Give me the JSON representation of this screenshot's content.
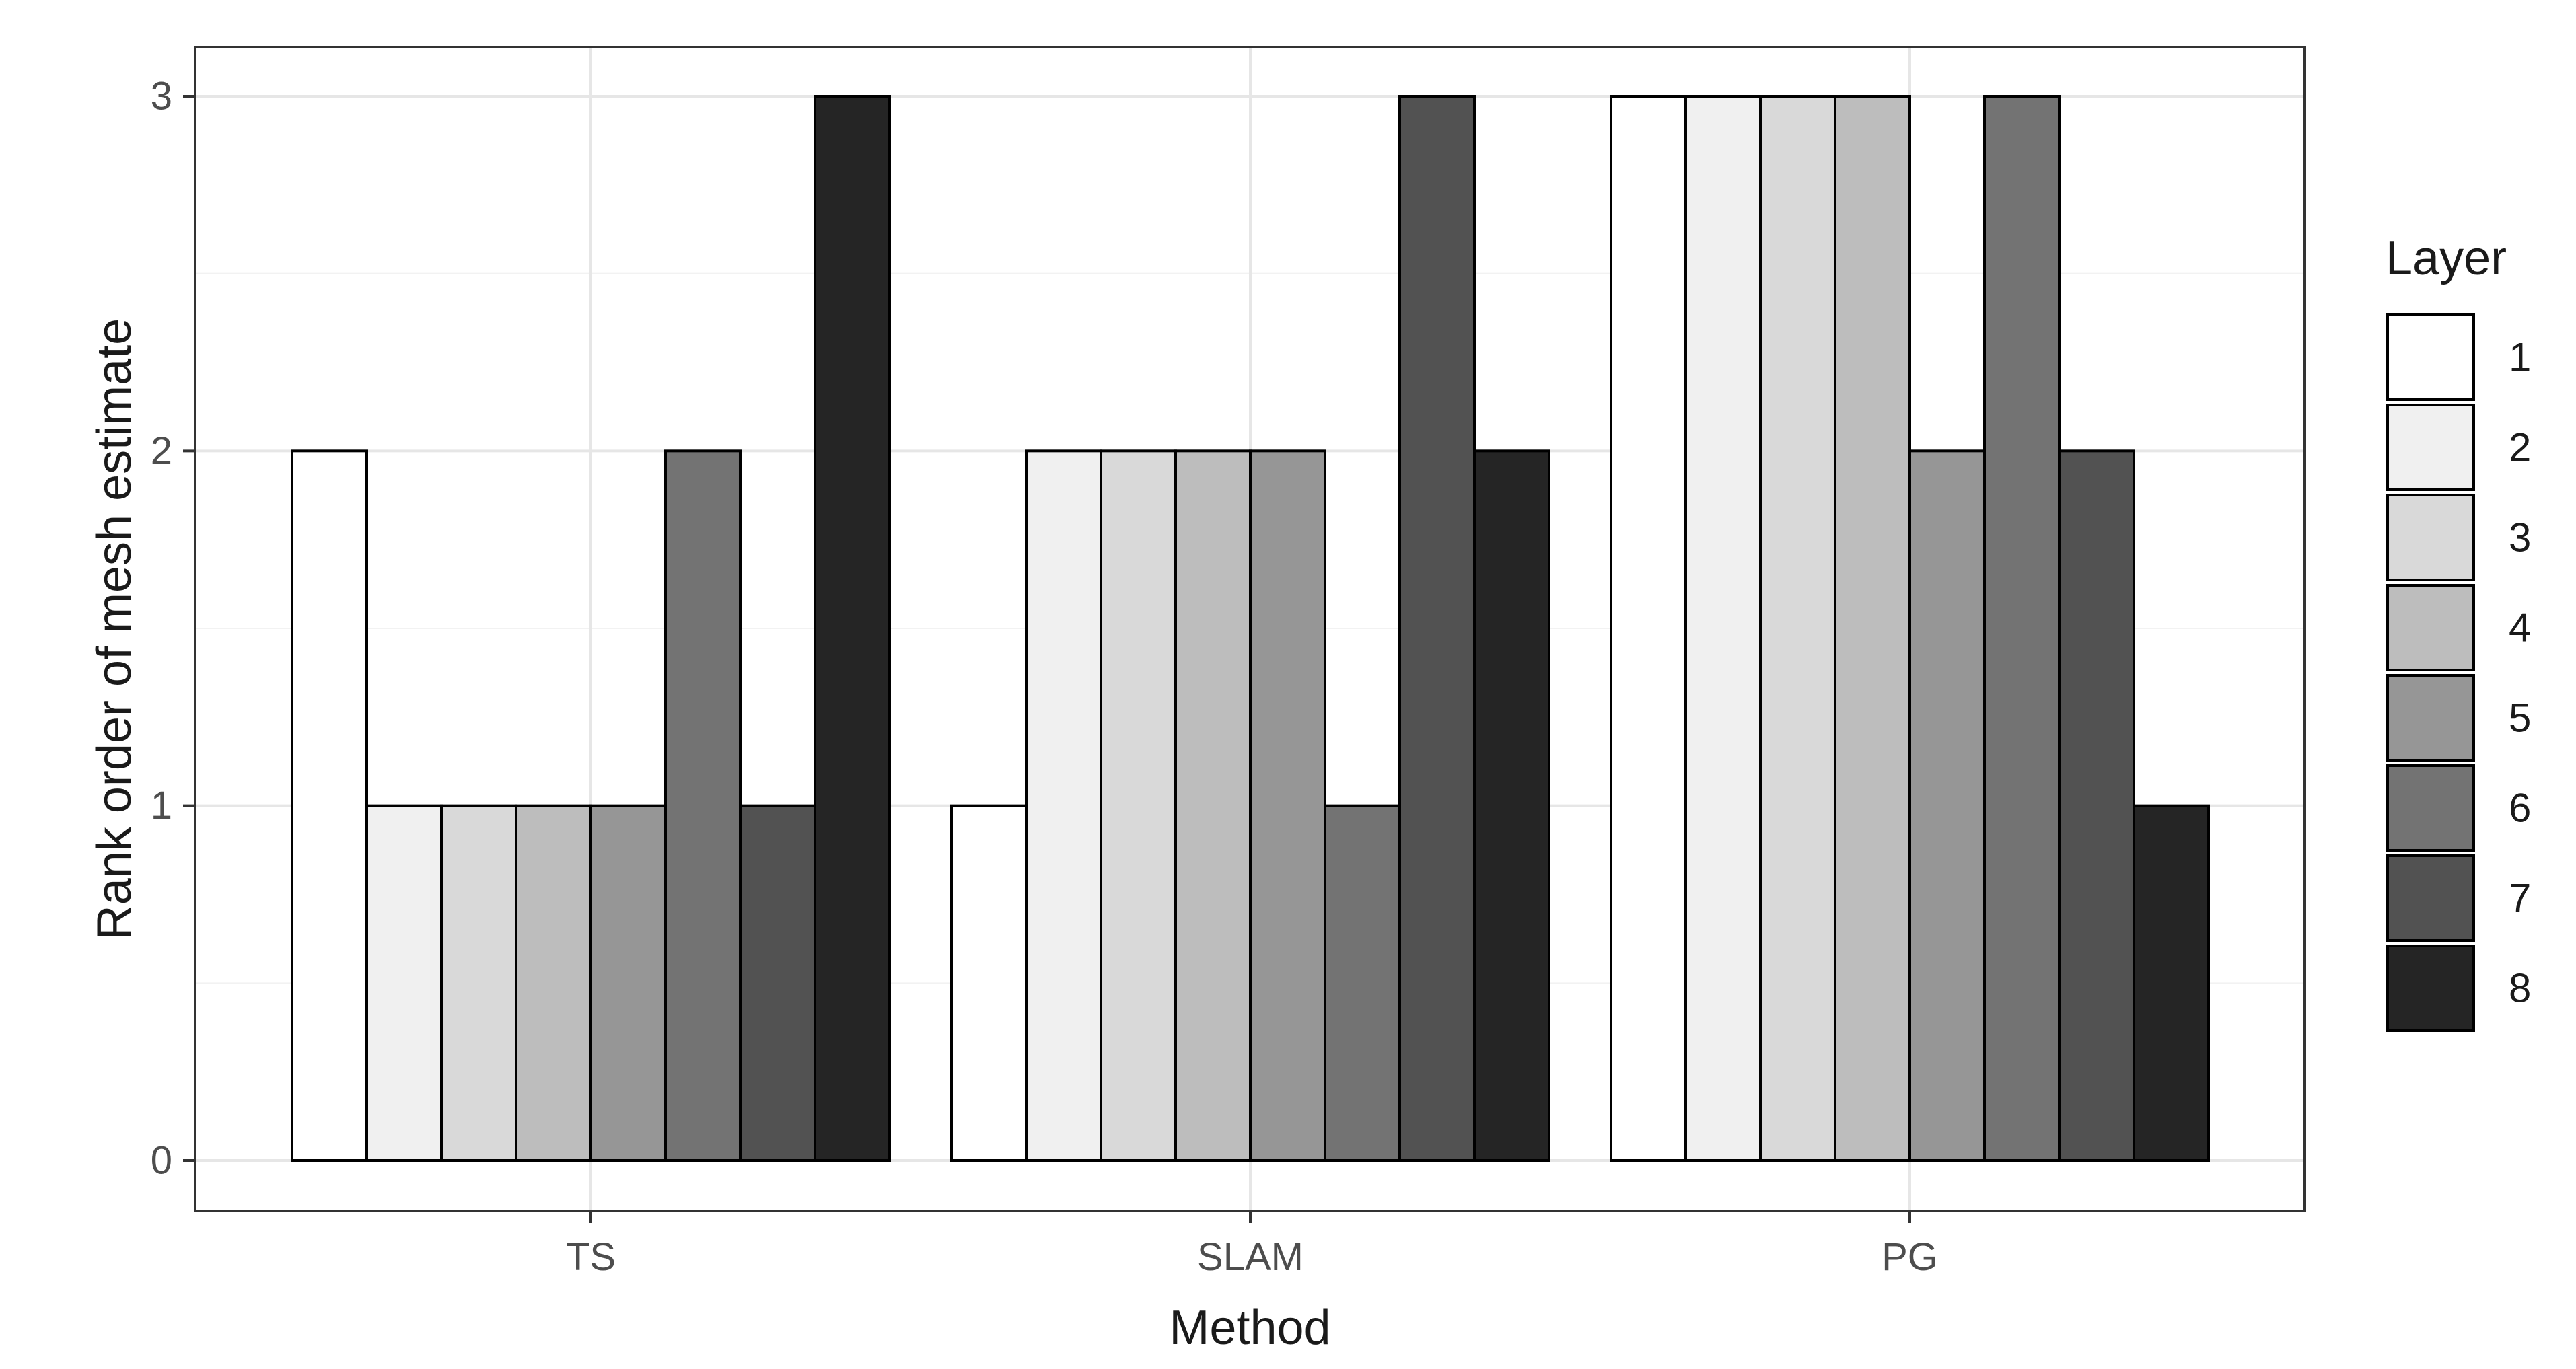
{
  "chart_data": {
    "type": "bar",
    "xlabel": "Method",
    "ylabel": "Rank order of mesh estimate",
    "categories": [
      "TS",
      "SLAM",
      "PG"
    ],
    "yticks": [
      "0",
      "1",
      "2",
      "3"
    ],
    "ylim": [
      0,
      3
    ],
    "grid": true,
    "legend": {
      "title": "Layer",
      "placement": "right"
    },
    "series": [
      {
        "name": "1",
        "color": "#ffffff",
        "values": [
          2,
          1,
          3
        ]
      },
      {
        "name": "2",
        "color": "#f0f0f0",
        "values": [
          1,
          2,
          3
        ]
      },
      {
        "name": "3",
        "color": "#d9d9d9",
        "values": [
          1,
          2,
          3
        ]
      },
      {
        "name": "4",
        "color": "#bdbdbd",
        "values": [
          1,
          2,
          3
        ]
      },
      {
        "name": "5",
        "color": "#969696",
        "values": [
          1,
          2,
          2
        ]
      },
      {
        "name": "6",
        "color": "#737373",
        "values": [
          2,
          1,
          3
        ]
      },
      {
        "name": "7",
        "color": "#525252",
        "values": [
          1,
          3,
          2
        ]
      },
      {
        "name": "8",
        "color": "#252525",
        "values": [
          3,
          2,
          1
        ]
      }
    ]
  }
}
